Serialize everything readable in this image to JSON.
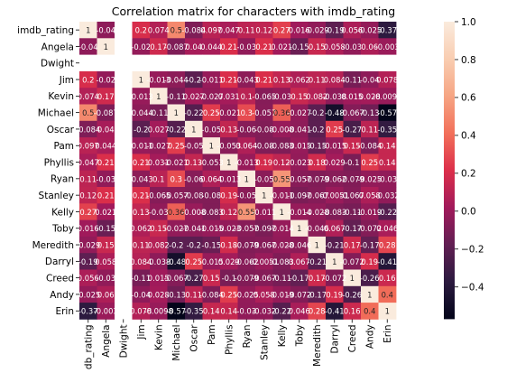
{
  "chart_data": {
    "type": "heatmap",
    "title": "Correlation matrix for characters with imdb_rating",
    "labels": [
      "imdb_rating",
      "Angela",
      "Dwight",
      "Jim",
      "Kevin",
      "Michael",
      "Oscar",
      "Pam",
      "Phyllis",
      "Ryan",
      "Stanley",
      "Kelly",
      "Toby",
      "Meredith",
      "Darryl",
      "Creed",
      "Andy",
      "Erin"
    ],
    "matrix": [
      [
        1,
        -0.04,
        null,
        0.2,
        0.074,
        0.5,
        -0.084,
        0.097,
        0.047,
        0.11,
        0.12,
        0.27,
        0.016,
        -0.029,
        -0.19,
        0.056,
        -0.025,
        -0.37
      ],
      [
        -0.04,
        1,
        null,
        -0.02,
        0.17,
        -0.087,
        0.04,
        0.044,
        0.21,
        -0.03,
        0.21,
        0.021,
        -0.15,
        0.15,
        0.058,
        -0.03,
        0.06,
        -0.003
      ],
      [
        null,
        null,
        null,
        null,
        null,
        null,
        null,
        null,
        null,
        null,
        null,
        null,
        null,
        null,
        null,
        null,
        null,
        null
      ],
      [
        0.2,
        -0.02,
        null,
        1,
        -0.013,
        -0.044,
        -0.2,
        -0.011,
        0.21,
        -0.043,
        0.21,
        0.13,
        0.062,
        0.11,
        0.084,
        -0.11,
        -0.04,
        0.078
      ],
      [
        0.074,
        0.17,
        null,
        -0.013,
        1,
        -0.11,
        0.027,
        -0.027,
        0.031,
        0.1,
        -0.065,
        -0.03,
        0.15,
        0.082,
        -0.038,
        0.015,
        0.028,
        -0.0098
      ],
      [
        0.5,
        -0.087,
        null,
        -0.044,
        -0.11,
        1,
        -0.22,
        0.25,
        -0.021,
        0.3,
        -0.057,
        0.36,
        -0.027,
        -0.2,
        -0.48,
        -0.067,
        -0.13,
        -0.57
      ],
      [
        -0.084,
        0.04,
        null,
        -0.2,
        0.027,
        -0.22,
        1,
        -0.05,
        0.13,
        -0.06,
        -0.08,
        -0.008,
        -0.041,
        -0.2,
        0.25,
        -0.27,
        0.11,
        -0.35
      ],
      [
        0.097,
        0.044,
        null,
        -0.011,
        -0.027,
        0.25,
        -0.05,
        1,
        -0.053,
        0.064,
        -0.08,
        -0.083,
        -0.015,
        -0.15,
        -0.015,
        0.15,
        -0.084,
        0.14
      ],
      [
        0.047,
        0.21,
        null,
        0.21,
        0.031,
        -0.021,
        0.13,
        -0.053,
        1,
        -0.013,
        0.19,
        0.12,
        -0.023,
        0.18,
        0.029,
        -0.1,
        0.25,
        0.14
      ],
      [
        0.11,
        -0.03,
        null,
        -0.043,
        0.1,
        0.3,
        -0.06,
        0.064,
        -0.013,
        1,
        -0.05,
        0.55,
        -0.057,
        -0.079,
        -0.062,
        -0.079,
        -0.025,
        -0.03
      ],
      [
        0.12,
        0.21,
        null,
        0.21,
        -0.065,
        -0.057,
        -0.08,
        -0.08,
        0.19,
        -0.05,
        1,
        -0.011,
        -0.097,
        -0.067,
        -0.0051,
        -0.067,
        0.058,
        -0.032
      ],
      [
        0.27,
        0.021,
        null,
        0.13,
        -0.03,
        0.36,
        -0.008,
        -0.083,
        0.12,
        0.55,
        -0.011,
        1,
        -0.014,
        -0.028,
        -0.083,
        -0.11,
        -0.019,
        -0.22
      ],
      [
        0.016,
        -0.15,
        null,
        0.062,
        0.15,
        -0.027,
        -0.041,
        -0.015,
        -0.023,
        -0.057,
        -0.097,
        -0.014,
        1,
        -0.046,
        0.067,
        -0.17,
        -0.072,
        0.046
      ],
      [
        -0.029,
        0.15,
        null,
        0.11,
        0.082,
        -0.2,
        -0.2,
        -0.15,
        0.18,
        -0.079,
        -0.067,
        -0.028,
        -0.046,
        1,
        -0.21,
        0.17,
        -0.17,
        0.28
      ],
      [
        -0.19,
        0.058,
        null,
        0.084,
        -0.038,
        -0.48,
        0.25,
        -0.015,
        0.029,
        -0.062,
        -0.0051,
        -0.083,
        0.067,
        -0.21,
        1,
        -0.072,
        0.19,
        -0.41
      ],
      [
        0.056,
        -0.03,
        null,
        -0.11,
        0.015,
        -0.067,
        -0.27,
        0.15,
        -0.1,
        -0.079,
        -0.067,
        -0.11,
        -0.17,
        0.17,
        -0.072,
        1,
        -0.26,
        0.16
      ],
      [
        -0.025,
        0.06,
        null,
        -0.04,
        0.028,
        -0.13,
        0.11,
        -0.084,
        0.25,
        -0.025,
        0.058,
        -0.019,
        -0.072,
        -0.17,
        0.19,
        -0.26,
        1,
        0.4
      ],
      [
        -0.37,
        -0.003,
        null,
        0.078,
        -0.0098,
        -0.57,
        -0.35,
        0.14,
        0.14,
        -0.03,
        -0.032,
        -0.22,
        0.046,
        0.28,
        -0.41,
        0.16,
        0.4,
        1
      ]
    ],
    "display": [
      [
        "1",
        "-0.04",
        "",
        "0.2",
        "0.074",
        "0.5",
        "-0.084",
        "0.097",
        "0.047",
        "0.11",
        "0.12",
        "0.27",
        "0.016",
        "-0.029",
        "-0.19",
        "0.056",
        "-0.025",
        "-0.37"
      ],
      [
        "-0.04",
        "1",
        "",
        "-0.02",
        "0.17",
        "-0.087",
        "0.04",
        "0.044",
        "0.21",
        "-0.03",
        "0.21",
        "0.021",
        "-0.15",
        "0.15",
        "0.058",
        "-0.03",
        "0.06",
        "-0.003"
      ],
      [
        "",
        "",
        "",
        "",
        "",
        "",
        "",
        "",
        "",
        "",
        "",
        "",
        "",
        "",
        "",
        "",
        "",
        ""
      ],
      [
        "0.2",
        "-0.02",
        "",
        "1",
        "-0.013",
        "-0.044",
        "-0.2",
        "-0.011",
        "0.21",
        "-0.043",
        "0.21",
        "0.13",
        "0.062",
        "0.11",
        "0.084",
        "-0.11",
        "-0.04",
        "0.078"
      ],
      [
        "0.074",
        "0.17",
        "",
        "-0.013",
        "1",
        "-0.11",
        "0.027",
        "-0.027",
        "0.031",
        "0.1",
        "-0.065",
        "-0.03",
        "0.15",
        "0.082",
        "-0.038",
        "0.015",
        "0.028",
        "-0.0098"
      ],
      [
        "0.5",
        "-0.087",
        "",
        "-0.044",
        "-0.11",
        "1",
        "-0.22",
        "0.25",
        "-0.021",
        "0.3",
        "-0.057",
        "0.36",
        "-0.027",
        "-0.2",
        "-0.48",
        "-0.067",
        "-0.13",
        "-0.57"
      ],
      [
        "-0.084",
        "0.04",
        "",
        "-0.2",
        "0.027",
        "-0.22",
        "1",
        "-0.05",
        "0.13",
        "-0.06",
        "-0.08",
        "-0.008",
        "-0.041",
        "-0.2",
        "0.25",
        "-0.27",
        "0.11",
        "-0.35"
      ],
      [
        "0.097",
        "0.044",
        "",
        "-0.011",
        "-0.027",
        "0.25",
        "-0.05",
        "1",
        "-0.053",
        "0.064",
        "-0.08",
        "-0.083",
        "-0.015",
        "-0.15",
        "-0.015",
        "0.15",
        "-0.084",
        "0.14"
      ],
      [
        "0.047",
        "0.21",
        "",
        "0.21",
        "0.031",
        "-0.021",
        "0.13",
        "-0.053",
        "1",
        "-0.013",
        "0.19",
        "0.12",
        "-0.023",
        "0.18",
        "0.029",
        "-0.1",
        "0.25",
        "0.14"
      ],
      [
        "0.11",
        "-0.03",
        "",
        "-0.043",
        "0.1",
        "0.3",
        "-0.06",
        "0.064",
        "-0.013",
        "1",
        "-0.05",
        "0.55",
        "-0.057",
        "-0.079",
        "-0.062",
        "-0.079",
        "-0.025",
        "-0.03"
      ],
      [
        "0.12",
        "0.21",
        "",
        "0.21",
        "-0.065",
        "-0.057",
        "-0.08",
        "-0.08",
        "0.19",
        "-0.05",
        "1",
        "-0.011",
        "-0.097",
        "-0.067",
        "-0.0051",
        "-0.067",
        "0.058",
        "-0.032"
      ],
      [
        "0.27",
        "0.021",
        "",
        "0.13",
        "-0.03",
        "0.36",
        "-0.008",
        "-0.083",
        "0.12",
        "0.55",
        "-0.011",
        "1",
        "-0.014",
        "-0.028",
        "-0.083",
        "-0.11",
        "-0.019",
        "-0.22"
      ],
      [
        "0.016",
        "-0.15",
        "",
        "0.062",
        "0.15",
        "-0.027",
        "-0.041",
        "-0.015",
        "-0.023",
        "-0.057",
        "-0.097",
        "-0.014",
        "1",
        "-0.046",
        "0.067",
        "-0.17",
        "-0.072",
        "0.046"
      ],
      [
        "-0.029",
        "0.15",
        "",
        "0.11",
        "0.082",
        "-0.2",
        "-0.2",
        "-0.15",
        "0.18",
        "-0.079",
        "-0.067",
        "-0.028",
        "-0.046",
        "1",
        "-0.21",
        "0.17",
        "-0.17",
        "0.28"
      ],
      [
        "-0.19",
        "0.058",
        "",
        "0.084",
        "-0.038",
        "-0.48",
        "0.25",
        "-0.015",
        "0.029",
        "-0.062",
        "-0.0051",
        "-0.083",
        "0.067",
        "-0.21",
        "1",
        "-0.072",
        "0.19",
        "-0.41"
      ],
      [
        "0.056",
        "-0.03",
        "",
        "-0.11",
        "0.015",
        "-0.067",
        "-0.27",
        "0.15",
        "-0.1",
        "-0.079",
        "-0.067",
        "-0.11",
        "-0.17",
        "0.17",
        "-0.072",
        "1",
        "-0.26",
        "0.16"
      ],
      [
        "-0.025",
        "0.06",
        "",
        "-0.04",
        "0.028",
        "-0.13",
        "0.11",
        "-0.084",
        "0.25",
        "-0.025",
        "0.058",
        "-0.019",
        "-0.072",
        "-0.17",
        "0.19",
        "-0.26",
        "1",
        "0.4"
      ],
      [
        "-0.37",
        "-0.003",
        "",
        "0.078",
        "-0.0098",
        "-0.57",
        "-0.35",
        "0.14",
        "0.14",
        "-0.03",
        "-0.032",
        "-0.22",
        "0.046",
        "0.28",
        "-0.41",
        "0.16",
        "0.4",
        "1"
      ]
    ],
    "colorbar": {
      "range": [
        -0.57,
        1.0
      ],
      "ticks": [
        1.0,
        0.8,
        0.6,
        0.4,
        0.2,
        0.0,
        -0.2,
        -0.4
      ],
      "tick_labels": [
        "1.0",
        "0.8",
        "0.6",
        "0.4",
        "0.2",
        "0.0",
        "−0.2",
        "−0.4"
      ],
      "colormap": "rocket",
      "stops": [
        "#03051a",
        "#2b1a3f",
        "#611f53",
        "#a11a5b",
        "#dc2f4a",
        "#f2705a",
        "#f6a583",
        "#f9cdb1",
        "#faebdd"
      ]
    },
    "xlabel": "",
    "ylabel": "",
    "legend": "right (colorbar)",
    "missing_color": "#ffffff"
  }
}
